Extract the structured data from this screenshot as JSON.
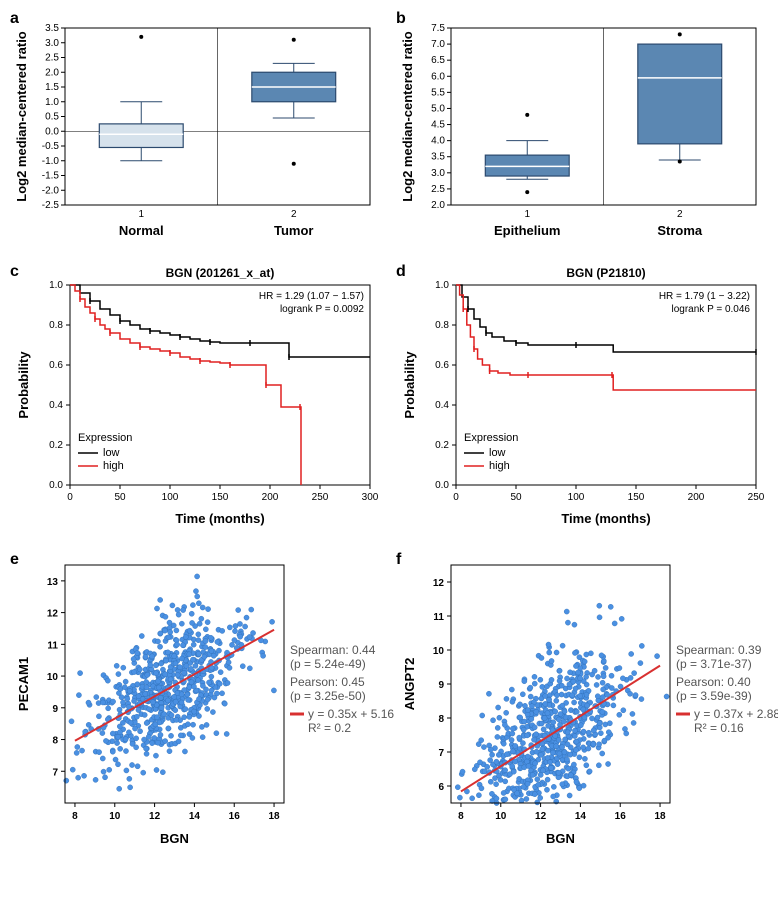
{
  "panel_a": {
    "label": "a",
    "ylabel": "Log2 median-centered ratio",
    "ylim": [
      -2.5,
      3.5
    ],
    "ytick_step": 0.5,
    "categories": [
      "Normal",
      "Tumor"
    ],
    "x_ticks": [
      "1",
      "2"
    ],
    "box_fill": [
      "#d6e2ec",
      "#5b87b2"
    ],
    "box_stroke": "#2c4a6e",
    "grid_color": "#000000",
    "boxes": [
      {
        "min": -1.0,
        "q1": -0.55,
        "median": -0.1,
        "q3": 0.25,
        "max": 1.0,
        "outliers": [
          3.2
        ]
      },
      {
        "min": 0.45,
        "q1": 1.0,
        "median": 1.5,
        "q3": 2.0,
        "max": 2.3,
        "outliers": [
          3.1,
          -1.1
        ]
      }
    ]
  },
  "panel_b": {
    "label": "b",
    "ylabel": "Log2 median-centered ratio",
    "ylim": [
      2.0,
      7.5
    ],
    "ytick_step": 0.5,
    "categories": [
      "Epithelium",
      "Stroma"
    ],
    "x_ticks": [
      "1",
      "2"
    ],
    "box_fill": [
      "#5b87b2",
      "#5b87b2"
    ],
    "box_stroke": "#2c4a6e",
    "grid_color": "#000000",
    "boxes": [
      {
        "min": 2.8,
        "q1": 2.9,
        "median": 3.2,
        "q3": 3.55,
        "max": 4.0,
        "outliers": [
          4.8,
          2.4
        ]
      },
      {
        "min": 3.4,
        "q1": 3.9,
        "median": 5.95,
        "q3": 7.0,
        "max": 7.0,
        "outliers": [
          7.3,
          3.35
        ]
      }
    ]
  },
  "panel_c": {
    "label": "c",
    "title": "BGN (201261_x_at)",
    "xlabel": "Time (months)",
    "ylabel": "Probability",
    "xlim": [
      0,
      300
    ],
    "xtick_step": 50,
    "ylim": [
      0,
      1.0
    ],
    "ytick_step": 0.2,
    "hr_text": "HR = 1.29 (1.07 − 1.57)",
    "p_text": "logrank P = 0.0092",
    "legend_title": "Expression",
    "legend_items": [
      "low",
      "high"
    ],
    "legend_colors": [
      "#000000",
      "#e02020"
    ],
    "low": [
      [
        0,
        1.0
      ],
      [
        10,
        0.96
      ],
      [
        20,
        0.92
      ],
      [
        30,
        0.88
      ],
      [
        40,
        0.85
      ],
      [
        50,
        0.82
      ],
      [
        60,
        0.8
      ],
      [
        70,
        0.78
      ],
      [
        80,
        0.77
      ],
      [
        90,
        0.76
      ],
      [
        100,
        0.75
      ],
      [
        110,
        0.74
      ],
      [
        120,
        0.73
      ],
      [
        130,
        0.72
      ],
      [
        140,
        0.715
      ],
      [
        150,
        0.71
      ],
      [
        160,
        0.71
      ],
      [
        180,
        0.71
      ],
      [
        200,
        0.71
      ],
      [
        218,
        0.71
      ],
      [
        219,
        0.64
      ],
      [
        300,
        0.64
      ]
    ],
    "high": [
      [
        0,
        1.0
      ],
      [
        5,
        0.97
      ],
      [
        10,
        0.93
      ],
      [
        15,
        0.89
      ],
      [
        20,
        0.86
      ],
      [
        25,
        0.83
      ],
      [
        30,
        0.8
      ],
      [
        35,
        0.78
      ],
      [
        40,
        0.76
      ],
      [
        50,
        0.73
      ],
      [
        60,
        0.71
      ],
      [
        70,
        0.69
      ],
      [
        80,
        0.68
      ],
      [
        90,
        0.67
      ],
      [
        100,
        0.66
      ],
      [
        110,
        0.64
      ],
      [
        120,
        0.63
      ],
      [
        130,
        0.62
      ],
      [
        140,
        0.615
      ],
      [
        150,
        0.61
      ],
      [
        160,
        0.6
      ],
      [
        180,
        0.6
      ],
      [
        195,
        0.6
      ],
      [
        196,
        0.5
      ],
      [
        210,
        0.5
      ],
      [
        211,
        0.39
      ],
      [
        230,
        0.39
      ],
      [
        231,
        0.0
      ]
    ]
  },
  "panel_d": {
    "label": "d",
    "title": "BGN (P21810)",
    "xlabel": "Time (months)",
    "ylabel": "Probability",
    "xlim": [
      0,
      250
    ],
    "xtick_step": 50,
    "ylim": [
      0,
      1.0
    ],
    "ytick_step": 0.2,
    "hr_text": "HR = 1.79 (1 − 3.22)",
    "p_text": "logrank P = 0.046",
    "legend_title": "Expression",
    "legend_items": [
      "low",
      "high"
    ],
    "legend_colors": [
      "#000000",
      "#e02020"
    ],
    "low": [
      [
        0,
        1.0
      ],
      [
        5,
        0.94
      ],
      [
        10,
        0.88
      ],
      [
        15,
        0.83
      ],
      [
        20,
        0.79
      ],
      [
        25,
        0.76
      ],
      [
        30,
        0.74
      ],
      [
        40,
        0.72
      ],
      [
        50,
        0.71
      ],
      [
        60,
        0.7
      ],
      [
        80,
        0.7
      ],
      [
        100,
        0.7
      ],
      [
        130,
        0.7
      ],
      [
        131,
        0.665
      ],
      [
        250,
        0.665
      ]
    ],
    "high": [
      [
        0,
        1.0
      ],
      [
        3,
        0.95
      ],
      [
        6,
        0.88
      ],
      [
        9,
        0.8
      ],
      [
        12,
        0.74
      ],
      [
        15,
        0.68
      ],
      [
        18,
        0.63
      ],
      [
        22,
        0.6
      ],
      [
        28,
        0.57
      ],
      [
        35,
        0.56
      ],
      [
        45,
        0.55
      ],
      [
        60,
        0.55
      ],
      [
        80,
        0.55
      ],
      [
        100,
        0.55
      ],
      [
        130,
        0.55
      ],
      [
        131,
        0.475
      ],
      [
        250,
        0.475
      ]
    ]
  },
  "panel_e": {
    "label": "e",
    "xlabel": "BGN",
    "ylabel": "PECAM1",
    "xlim": [
      7.5,
      18.5
    ],
    "xticks": [
      8,
      10,
      12,
      14,
      16,
      18
    ],
    "ylim": [
      6,
      13.5
    ],
    "yticks": [
      7,
      8,
      9,
      10,
      11,
      12,
      13
    ],
    "pt_color": "#4a90e2",
    "n_points": 700,
    "slope": 0.35,
    "intercept": 5.16,
    "jitter": 1.0,
    "spearman_text": "Spearman: 0.44",
    "spearman_p": "(p = 5.24e-49)",
    "pearson_text": "Pearson: 0.45",
    "pearson_p": "(p = 3.25e-50)",
    "eq_text": "y = 0.35x + 5.16",
    "r2_text": "R² = 0.2"
  },
  "panel_f": {
    "label": "f",
    "xlabel": "BGN",
    "ylabel": "ANGPT2",
    "xlim": [
      7.5,
      18.5
    ],
    "xticks": [
      8,
      10,
      12,
      14,
      16,
      18
    ],
    "ylim": [
      5.5,
      12.5
    ],
    "yticks": [
      6,
      7,
      8,
      9,
      10,
      11,
      12
    ],
    "pt_color": "#4a90e2",
    "n_points": 700,
    "slope": 0.37,
    "intercept": 2.88,
    "jitter": 1.0,
    "spearman_text": "Spearman: 0.39",
    "spearman_p": "(p = 3.71e-37)",
    "pearson_text": "Pearson: 0.40",
    "pearson_p": "(p = 3.59e-39)",
    "eq_text": "y = 0.37x + 2.88",
    "r2_text": "R² = 0.16"
  }
}
